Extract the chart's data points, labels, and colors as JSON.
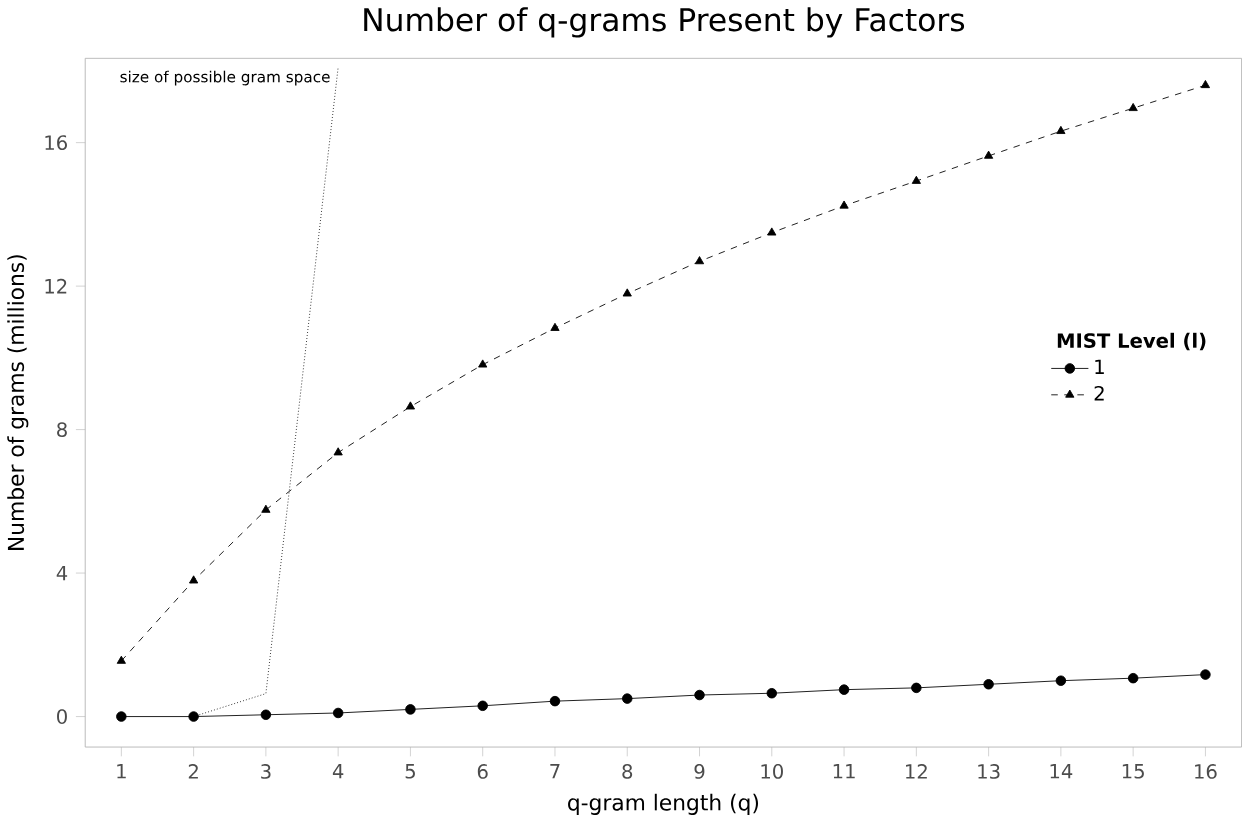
{
  "chart_data": {
    "type": "line",
    "title": "Number of q-grams Present by Factors",
    "xlabel": "q-gram length (q)",
    "ylabel": "Number of grams (millions)",
    "legend_title": "MIST Level (l)",
    "x": [
      1,
      2,
      3,
      4,
      5,
      6,
      7,
      8,
      9,
      10,
      11,
      12,
      13,
      14,
      15,
      16
    ],
    "series": [
      {
        "name": "1",
        "color": "#000000",
        "marker": "circle",
        "line_style": "solid",
        "values": [
          0,
          0,
          0.05,
          0.1,
          0.2,
          0.3,
          0.43,
          0.5,
          0.6,
          0.65,
          0.75,
          0.8,
          0.9,
          1.0,
          1.07,
          1.17
        ]
      },
      {
        "name": "2",
        "color": "#000000",
        "marker": "triangle",
        "line_style": "dashed",
        "values": [
          1.55,
          3.79,
          5.76,
          7.36,
          8.64,
          9.81,
          10.83,
          11.79,
          12.69,
          13.49,
          14.24,
          14.93,
          15.63,
          16.32,
          16.96,
          17.6
        ]
      },
      {
        "name": "size of possible gram space",
        "color": "#000000",
        "marker": "none",
        "line_style": "dotted",
        "x": [
          2,
          3,
          4
        ],
        "values": [
          0,
          0.64,
          18.1
        ]
      }
    ],
    "xlim": [
      0.5,
      16.5
    ],
    "ylim": [
      -0.85,
      18.35
    ],
    "xticks": [
      1,
      2,
      3,
      4,
      5,
      6,
      7,
      8,
      9,
      10,
      11,
      12,
      13,
      14,
      15,
      16
    ],
    "yticks": [
      0,
      4,
      8,
      12,
      16
    ],
    "grid": false,
    "legend": "right"
  }
}
